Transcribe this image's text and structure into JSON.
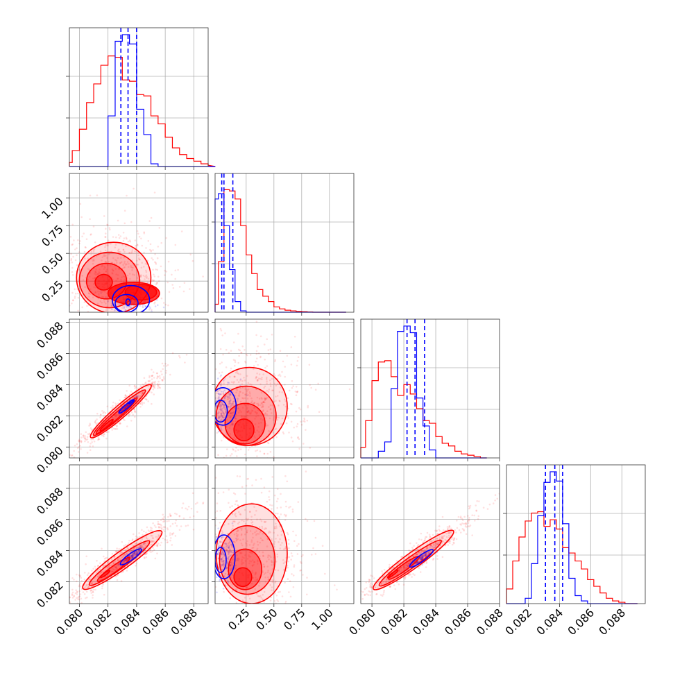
{
  "colors": {
    "red": "#ff0000",
    "blue": "#0000ff",
    "grid": "#b0b0b0",
    "frame": "#333333"
  },
  "chart_data": [
    {
      "type": "histogram",
      "panel": "p00",
      "xlim": [
        0.0793,
        0.089
      ],
      "bins": [
        0.0795,
        0.08,
        0.0805,
        0.081,
        0.0815,
        0.082,
        0.0825,
        0.083,
        0.0835,
        0.084,
        0.0845,
        0.085,
        0.0855,
        0.086,
        0.0865,
        0.087,
        0.0875,
        0.088,
        0.0885
      ],
      "series": [
        {
          "color": "red",
          "counts": [
            0.03,
            0.12,
            0.28,
            0.48,
            0.62,
            0.76,
            0.83,
            0.82,
            0.65,
            0.64,
            0.54,
            0.53,
            0.38,
            0.32,
            0.22,
            0.14,
            0.09,
            0.06,
            0.04,
            0.02,
            0.01,
            0.0
          ]
        },
        {
          "color": "blue",
          "counts": [
            0.0,
            0.0,
            0.0,
            0.0,
            0.0,
            0.0,
            0.38,
            0.94,
            0.99,
            0.92,
            0.43,
            0.24,
            0.02,
            0.0,
            0.0,
            0.0,
            0.0,
            0.0,
            0.0,
            0.0,
            0.0,
            0.0
          ]
        }
      ],
      "quantiles": [
        0.0829,
        0.0834,
        0.084
      ]
    },
    {
      "type": "histogram",
      "panel": "p11",
      "xlim": [
        -0.03,
        1.22
      ],
      "bins": [
        0.0,
        0.05,
        0.1,
        0.15,
        0.2,
        0.25,
        0.3,
        0.35,
        0.4,
        0.45,
        0.5,
        0.55,
        0.6,
        0.65,
        0.7,
        0.75,
        0.8,
        0.85,
        0.9,
        0.95,
        1.0,
        1.05,
        1.1,
        1.15,
        1.2
      ],
      "series": [
        {
          "color": "red",
          "counts": [
            0.06,
            0.38,
            0.92,
            0.91,
            0.85,
            0.65,
            0.43,
            0.29,
            0.17,
            0.12,
            0.08,
            0.04,
            0.025,
            0.015,
            0.01,
            0.006,
            0.004,
            0.002,
            0.0,
            0.0,
            0.0,
            0.0,
            0.0,
            0.0
          ]
        },
        {
          "color": "blue",
          "counts": [
            0.85,
            0.89,
            0.65,
            0.32,
            0.08,
            0.01,
            0.0,
            0.0,
            0.0,
            0.0,
            0.0,
            0.0,
            0.0,
            0.0,
            0.0,
            0.0,
            0.0,
            0.0,
            0.0,
            0.0,
            0.0,
            0.0,
            0.0,
            0.0
          ]
        }
      ],
      "quantiles": [
        0.03,
        0.05,
        0.13
      ]
    },
    {
      "type": "histogram",
      "panel": "p22",
      "xlim": [
        0.0793,
        0.088
      ],
      "bins": [
        0.0796,
        0.08,
        0.0804,
        0.0808,
        0.0812,
        0.0816,
        0.082,
        0.0824,
        0.0828,
        0.0832,
        0.0836,
        0.084,
        0.0844,
        0.0848,
        0.0852,
        0.0856,
        0.086,
        0.0864,
        0.0868,
        0.0872,
        0.0876
      ],
      "series": [
        {
          "color": "red",
          "counts": [
            0.08,
            0.28,
            0.58,
            0.72,
            0.73,
            0.61,
            0.47,
            0.55,
            0.48,
            0.37,
            0.28,
            0.26,
            0.16,
            0.11,
            0.09,
            0.05,
            0.03,
            0.02,
            0.01,
            0.0
          ]
        },
        {
          "color": "blue",
          "counts": [
            0.0,
            0.0,
            0.0,
            0.05,
            0.12,
            0.52,
            0.95,
            0.99,
            0.94,
            0.45,
            0.24,
            0.06,
            0.0,
            0.0,
            0.0,
            0.0,
            0.0,
            0.0,
            0.0,
            0.0
          ]
        }
      ],
      "quantiles": [
        0.0822,
        0.0827,
        0.0833
      ]
    },
    {
      "type": "histogram",
      "panel": "p33",
      "xlim": [
        0.0806,
        0.0895
      ],
      "bins": [
        0.0806,
        0.081,
        0.0814,
        0.0818,
        0.0822,
        0.0826,
        0.083,
        0.0834,
        0.0838,
        0.0842,
        0.0846,
        0.085,
        0.0854,
        0.0858,
        0.0862,
        0.0866,
        0.087,
        0.0874,
        0.0878,
        0.0882,
        0.0886,
        0.089,
        0.0894
      ],
      "series": [
        {
          "color": "red",
          "counts": [
            0.02,
            0.11,
            0.32,
            0.5,
            0.62,
            0.68,
            0.69,
            0.58,
            0.63,
            0.56,
            0.42,
            0.38,
            0.32,
            0.26,
            0.18,
            0.13,
            0.08,
            0.04,
            0.02,
            0.01,
            0.0,
            0.0
          ]
        },
        {
          "color": "blue",
          "counts": [
            0.0,
            0.0,
            0.0,
            0.0,
            0.04,
            0.3,
            0.66,
            0.91,
            0.99,
            0.92,
            0.6,
            0.19,
            0.06,
            0.02,
            0.0,
            0.0,
            0.0,
            0.0,
            0.0,
            0.0,
            0.0,
            0.0
          ]
        }
      ],
      "quantiles": [
        0.0831,
        0.0837,
        0.0842
      ]
    },
    {
      "type": "contour",
      "panel": "p10",
      "xlim": [
        0.0793,
        0.089
      ],
      "ylim": [
        -0.03,
        1.22
      ],
      "series": [
        {
          "color": "red",
          "levels": [
            {
              "cx": 0.0824,
              "cy": 0.28,
              "rx": 0.0026,
              "ry": 0.32,
              "skew": 0.0
            },
            {
              "cx": 0.0821,
              "cy": 0.26,
              "rx": 0.0021,
              "ry": 0.25,
              "skew": 0.0
            },
            {
              "cx": 0.0819,
              "cy": 0.25,
              "rx": 0.0014,
              "ry": 0.16,
              "skew": 0.0
            },
            {
              "cx": 0.0817,
              "cy": 0.24,
              "rx": 0.0006,
              "ry": 0.07,
              "skew": 0.0
            },
            {
              "cx": 0.0843,
              "cy": 0.15,
              "rx": 0.0011,
              "ry": 0.07,
              "skew": 0.0
            },
            {
              "cx": 0.0838,
              "cy": 0.14,
              "rx": 0.0018,
              "ry": 0.1,
              "skew": 0.0
            }
          ]
        },
        {
          "color": "blue",
          "levels": [
            {
              "cx": 0.0836,
              "cy": 0.08,
              "rx": 0.0013,
              "ry": 0.13,
              "skew": 0.0
            },
            {
              "cx": 0.0833,
              "cy": 0.05,
              "rx": 0.0008,
              "ry": 0.08,
              "skew": 0.0
            },
            {
              "cx": 0.0834,
              "cy": 0.06,
              "rx": 0.00015,
              "ry": 0.03,
              "skew": 0.0
            }
          ]
        }
      ]
    },
    {
      "type": "contour",
      "panel": "p20",
      "xlim": [
        0.0793,
        0.089
      ],
      "ylim": [
        0.0793,
        0.0882
      ],
      "series": [
        {
          "color": "red",
          "levels": [
            {
              "cx": 0.0829,
              "cy": 0.0823,
              "rx": 0.0028,
              "ry": 0.0004,
              "angle": -41,
              "skew": 0.0
            },
            {
              "cx": 0.0828,
              "cy": 0.0822,
              "rx": 0.0024,
              "ry": 0.00028,
              "angle": -41,
              "skew": 0.0
            },
            {
              "cx": 0.0826,
              "cy": 0.082,
              "rx": 0.0019,
              "ry": 0.00018,
              "angle": -41,
              "skew": 0.0
            },
            {
              "cx": 0.0819,
              "cy": 0.0814,
              "rx": 0.0006,
              "ry": 9e-05,
              "angle": -41,
              "skew": 0.0
            }
          ]
        },
        {
          "color": "blue",
          "levels": [
            {
              "cx": 0.0833,
              "cy": 0.0826,
              "rx": 0.0007,
              "ry": 0.00012,
              "angle": -41,
              "skew": 0.0
            },
            {
              "cx": 0.0836,
              "cy": 0.0829,
              "rx": 0.0002,
              "ry": 5e-05,
              "angle": -41,
              "skew": 0.0
            }
          ]
        }
      ]
    },
    {
      "type": "contour",
      "panel": "p21",
      "xlim": [
        -0.03,
        1.22
      ],
      "ylim": [
        0.0793,
        0.0882
      ],
      "series": [
        {
          "color": "red",
          "levels": [
            {
              "cx": 0.28,
              "cy": 0.0826,
              "rx": 0.34,
              "ry": 0.0025,
              "skew": 0.0
            },
            {
              "cx": 0.25,
              "cy": 0.082,
              "rx": 0.27,
              "ry": 0.0019,
              "skew": 0.0
            },
            {
              "cx": 0.24,
              "cy": 0.0815,
              "rx": 0.18,
              "ry": 0.0013,
              "skew": 0.0
            },
            {
              "cx": 0.23,
              "cy": 0.0811,
              "rx": 0.09,
              "ry": 0.0007,
              "skew": 0.0
            }
          ]
        },
        {
          "color": "blue",
          "levels": [
            {
              "cx": 0.04,
              "cy": 0.0826,
              "rx": 0.12,
              "ry": 0.0012,
              "skew": 0.0
            },
            {
              "cx": 0.02,
              "cy": 0.0823,
              "rx": 0.06,
              "ry": 0.0007,
              "skew": 0.0
            }
          ]
        }
      ]
    },
    {
      "type": "contour",
      "panel": "p30",
      "xlim": [
        0.0793,
        0.089
      ],
      "ylim": [
        0.0806,
        0.0895
      ],
      "series": [
        {
          "color": "red",
          "levels": [
            {
              "cx": 0.083,
              "cy": 0.0834,
              "rx": 0.0034,
              "ry": 0.00055,
              "angle": -36,
              "skew": 0.0
            },
            {
              "cx": 0.0828,
              "cy": 0.0832,
              "rx": 0.0026,
              "ry": 0.00036,
              "angle": -36,
              "skew": 0.0
            },
            {
              "cx": 0.0824,
              "cy": 0.0828,
              "rx": 0.0014,
              "ry": 0.0002,
              "angle": -36,
              "skew": 0.0
            },
            {
              "cx": 0.0818,
              "cy": 0.0825,
              "rx": 0.0004,
              "ry": 8e-05,
              "angle": -36,
              "skew": 0.0
            }
          ]
        },
        {
          "color": "blue",
          "levels": [
            {
              "cx": 0.0836,
              "cy": 0.0836,
              "rx": 0.0009,
              "ry": 0.0002,
              "angle": -36,
              "skew": 0.0
            }
          ]
        }
      ]
    },
    {
      "type": "contour",
      "panel": "p31",
      "xlim": [
        -0.03,
        1.22
      ],
      "ylim": [
        0.0806,
        0.0895
      ],
      "series": [
        {
          "color": "red",
          "levels": [
            {
              "cx": 0.3,
              "cy": 0.0838,
              "rx": 0.32,
              "ry": 0.0032,
              "skew": 0.0
            },
            {
              "cx": 0.26,
              "cy": 0.0834,
              "rx": 0.25,
              "ry": 0.0022,
              "skew": 0.0
            },
            {
              "cx": 0.24,
              "cy": 0.0828,
              "rx": 0.15,
              "ry": 0.0013,
              "skew": 0.0
            },
            {
              "cx": 0.22,
              "cy": 0.0823,
              "rx": 0.08,
              "ry": 0.0006,
              "skew": 0.0
            }
          ]
        },
        {
          "color": "blue",
          "levels": [
            {
              "cx": 0.05,
              "cy": 0.0836,
              "rx": 0.1,
              "ry": 0.0014,
              "skew": 0.0
            },
            {
              "cx": 0.02,
              "cy": 0.0834,
              "rx": 0.05,
              "ry": 0.0008,
              "skew": 0.0
            }
          ]
        }
      ]
    },
    {
      "type": "contour",
      "panel": "p32",
      "xlim": [
        0.0793,
        0.088
      ],
      "ylim": [
        0.0806,
        0.0895
      ],
      "series": [
        {
          "color": "red",
          "levels": [
            {
              "cx": 0.0826,
              "cy": 0.0834,
              "rx": 0.0031,
              "ry": 0.0005,
              "angle": -36,
              "skew": 0.0
            },
            {
              "cx": 0.0824,
              "cy": 0.0832,
              "rx": 0.0024,
              "ry": 0.00034,
              "angle": -36,
              "skew": 0.0
            },
            {
              "cx": 0.082,
              "cy": 0.0829,
              "rx": 0.0012,
              "ry": 0.0002,
              "angle": -36,
              "skew": 0.0
            },
            {
              "cx": 0.0813,
              "cy": 0.0825,
              "rx": 0.0004,
              "ry": 8e-05,
              "angle": -36,
              "skew": 0.0
            }
          ]
        },
        {
          "color": "blue",
          "levels": [
            {
              "cx": 0.0831,
              "cy": 0.0835,
              "rx": 0.0009,
              "ry": 0.0002,
              "angle": -36,
              "skew": 0.0
            }
          ]
        }
      ]
    }
  ],
  "ticks": {
    "x0": [
      "0.080",
      "0.082",
      "0.084",
      "0.086",
      "0.088"
    ],
    "x1": [
      "0.25",
      "0.50",
      "0.75",
      "1.00"
    ],
    "x2": [
      "0.080",
      "0.082",
      "0.084",
      "0.086",
      "0.088"
    ],
    "x3": [
      "0.082",
      "0.084",
      "0.086",
      "0.088"
    ],
    "y1": [
      "0.25",
      "0.50",
      "0.75",
      "1.00"
    ],
    "y2": [
      "0.080",
      "0.082",
      "0.084",
      "0.086",
      "0.088"
    ],
    "y3": [
      "0.082",
      "0.084",
      "0.086",
      "0.088"
    ]
  }
}
